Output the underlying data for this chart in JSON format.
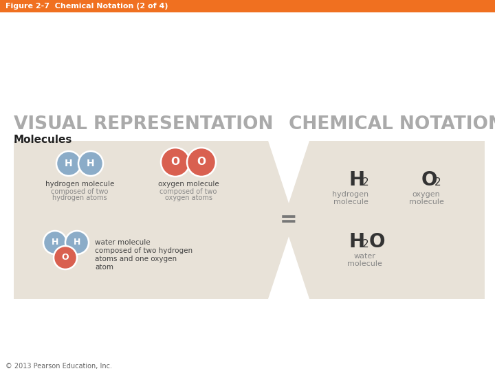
{
  "title": "Figure 2-7  Chemical Notation (2 of 4)",
  "title_bar_color": "#F07020",
  "background_color": "#FFFFFF",
  "visual_rep_label": "VISUAL REPRESENTATION",
  "chemical_notation_label": "CHEMICAL NOTATION",
  "molecules_label": "Molecules",
  "hex_fill_color": "#E8E2D8",
  "footer_text": "© 2013 Pearson Education, Inc.",
  "h_atom_color": "#8BACC8",
  "o_atom_color": "#D96050",
  "label_color": "#444444",
  "sublabel_color": "#888888",
  "header_text_color": "#FFFFFF",
  "section_header_color": "#AAAAAA"
}
